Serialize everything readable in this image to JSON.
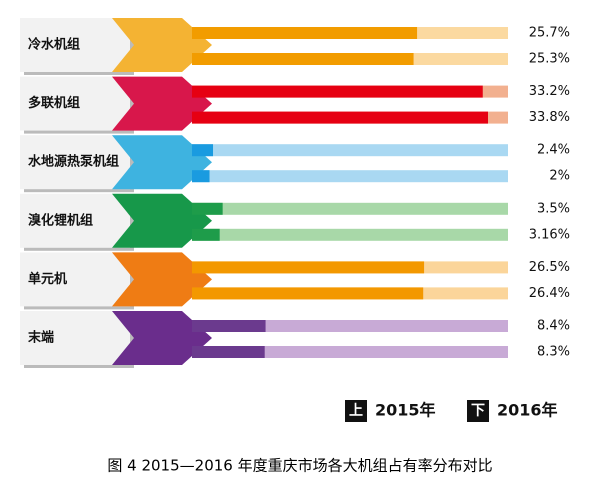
{
  "chart_data": {
    "type": "bar",
    "categories": [
      "冷水机组",
      "多联机组",
      "水地源热泵机组",
      "溴化锂机组",
      "单元机",
      "末端"
    ],
    "category_colors": [
      "#f4b333",
      "#d8174b",
      "#3eb3e0",
      "#17984a",
      "#ef7c14",
      "#6a2d8c"
    ],
    "series": [
      {
        "name": "2015年",
        "marker": "上",
        "colors": [
          "#f29c00",
          "#e60012",
          "#1a9be0",
          "#1e9c4a",
          "#f39800",
          "#6b3a8e"
        ],
        "values": [
          25.7,
          33.2,
          2.4,
          3.5,
          26.5,
          8.4
        ],
        "value_labels": [
          "25.7%",
          "33.2%",
          "2.4%",
          "3.5%",
          "26.5%",
          "8.4%"
        ]
      },
      {
        "name": "2016年",
        "marker": "下",
        "colors": [
          "#f29c00",
          "#e60012",
          "#1a9be0",
          "#1e9c4a",
          "#f39800",
          "#6b3a8e"
        ],
        "values": [
          25.3,
          33.8,
          2,
          3.16,
          26.4,
          8.3
        ],
        "value_labels": [
          "25.3%",
          "33.8%",
          "2%",
          "3.16%",
          "26.4%",
          "8.3%"
        ]
      }
    ],
    "track_colors": [
      "#fbd9a0",
      "#f2b08f",
      "#a9d8f2",
      "#a8d8a8",
      "#fbd59a",
      "#c8aad6"
    ],
    "caption": "图 4   2015—2016 年度重庆市场各大机组占有率分布对比"
  }
}
